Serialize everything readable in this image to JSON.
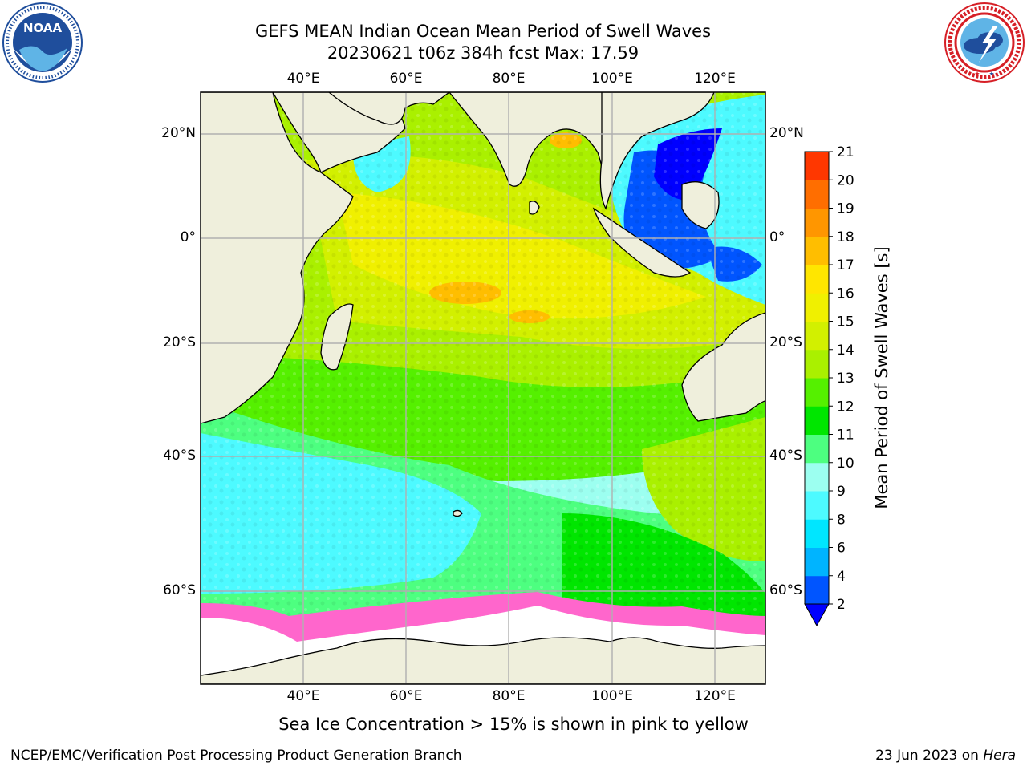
{
  "header": {
    "title_line1": "GEFS MEAN Indian Ocean Mean Period of Swell Waves",
    "title_line2": "20230621 t06z 384h fcst   Max: 17.59"
  },
  "logos": {
    "left": {
      "icon": "noaa-logo-icon",
      "text": "NOAA",
      "ring_text": "NATIONAL OCEANIC AND ATMOSPHERIC ADMINISTRATION · U.S. DEPARTMENT OF COMMERCE"
    },
    "right": {
      "icon": "nws-logo-icon",
      "ring_text": "NATIONAL WEATHER SERVICE"
    }
  },
  "map": {
    "lon_labels": [
      "40°E",
      "60°E",
      "80°E",
      "100°E",
      "120°E"
    ],
    "lon_values": [
      40,
      60,
      80,
      100,
      120
    ],
    "lat_labels": [
      "20°N",
      "0°",
      "20°S",
      "40°S",
      "60°S"
    ],
    "lat_values": [
      20,
      0,
      -20,
      -40,
      -60
    ],
    "colors": {
      "land": "#efefdc",
      "grid": "#b0b0b0",
      "ice": "#ffffff",
      "ice_pink": "#ff66cc",
      "ice_yellow": "#ffcc33"
    }
  },
  "colorbar": {
    "label": "Mean Period of Swell Waves [s]",
    "ticks": [
      "2",
      "4",
      "6",
      "8",
      "9",
      "10",
      "11",
      "12",
      "13",
      "14",
      "15",
      "16",
      "17",
      "18",
      "19",
      "20",
      "21"
    ],
    "colors": [
      "#0055ff",
      "#00b4ff",
      "#00e6ff",
      "#4dfaff",
      "#9cfff0",
      "#4dff80",
      "#00e600",
      "#55f000",
      "#aaf000",
      "#d2f000",
      "#f0f000",
      "#ffe600",
      "#ffbe00",
      "#ff9600",
      "#ff6e00",
      "#ff3700",
      "#ff0000"
    ],
    "under_color": "#0000ff"
  },
  "caption": "Sea Ice Concentration > 15% is shown in pink to yellow",
  "footer": {
    "left": "NCEP/EMC/Verification Post Processing Product Generation Branch",
    "date": "23 Jun 2023 on ",
    "host": "Hera"
  }
}
